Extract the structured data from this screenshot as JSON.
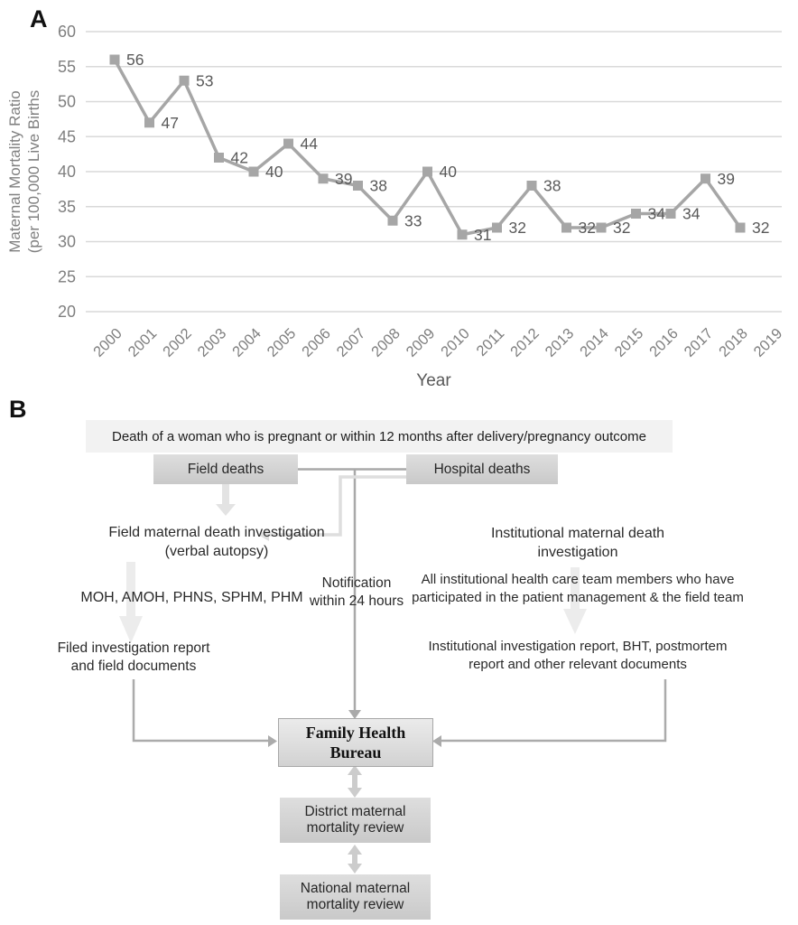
{
  "figure": {
    "panel_a_label": "A",
    "panel_b_label": "B"
  },
  "chart_data": {
    "type": "line",
    "x": [
      "2000",
      "2001",
      "2002",
      "2003",
      "2004",
      "2005",
      "2006",
      "2007",
      "2008",
      "2009",
      "2010",
      "2011",
      "2012",
      "2013",
      "2014",
      "2015",
      "2016",
      "2017",
      "2018",
      "2019"
    ],
    "series": [
      {
        "name": "Maternal Mortality Ratio",
        "values": [
          56,
          47,
          53,
          42,
          40,
          44,
          39,
          38,
          33,
          40,
          31,
          32,
          38,
          32,
          32,
          34,
          34,
          39,
          32,
          null
        ]
      }
    ],
    "xlabel": "Year",
    "ylabel": "Maternal Mortality Ratio (per 100,000 Live Births",
    "ylim": [
      20,
      60
    ],
    "ytick_step": 5,
    "grid": true,
    "marker": "square",
    "data_labels": true,
    "line_color": "#a6a6a6",
    "grid_color": "#d9d9d9",
    "tick_color": "#7f7f7f",
    "label_color": "#595959"
  },
  "panel_b": {
    "top_banner": "Death of a woman who is pregnant or within 12 months after delivery/pregnancy outcome",
    "field_deaths_box": "Field deaths",
    "hospital_deaths_box": "Hospital deaths",
    "field_investigation": "Field maternal death investigation\n(verbal autopsy)",
    "moh_team": "MOH, AMOH, PHNS, SPHM, PHM",
    "field_report": "Filed investigation report\nand field documents",
    "notification": "Notification\nwithin 24 hours",
    "institutional_investigation": "Institutional  maternal death\ninvestigation",
    "institutional_team": "All institutional health care team members who have\nparticipated in the patient management & the field team",
    "institutional_report": "Institutional  investigation report, BHT, postmortem\nreport and other relevant documents",
    "fhb_box": "Family Health\nBureau",
    "district_review": "District maternal\nmortality review",
    "national_review": "National maternal\nmortality review"
  }
}
